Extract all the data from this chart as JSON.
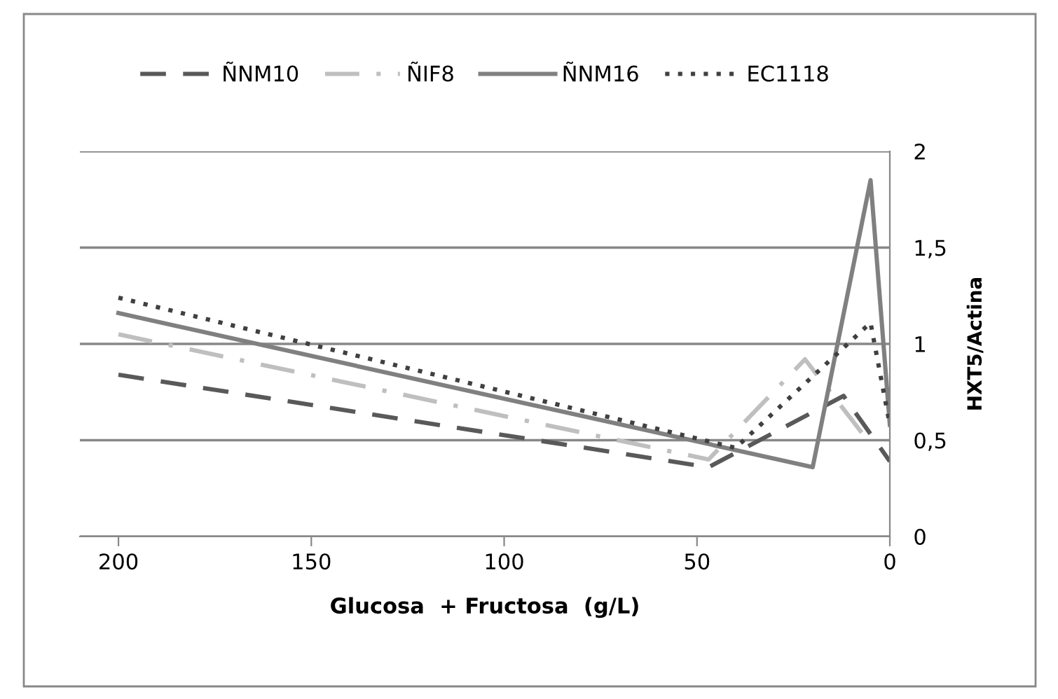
{
  "chart_data": {
    "type": "line",
    "xlabel": "Glucosa  + Fructosa  (g/L)",
    "ylabel": "HXT5/Actina",
    "xlim": [
      210,
      0
    ],
    "xticks": [
      200,
      150,
      100,
      50,
      0
    ],
    "ylim": [
      0,
      2
    ],
    "yticks": [
      0,
      {
        "value": 0.5,
        "label": "0,5"
      },
      1,
      {
        "value": 1.5,
        "label": "1,5"
      },
      2
    ],
    "grid": "y",
    "legend": "top",
    "marker": "none",
    "series": [
      {
        "name": "ÑNM10",
        "color": "#595959",
        "line_style": "dashed",
        "x": [
          200,
          47,
          12,
          0
        ],
        "values": [
          0.84,
          0.36,
          0.73,
          0.39
        ]
      },
      {
        "name": "ÑIF8",
        "color": "#bfbfbf",
        "line_style": "dashdot",
        "x": [
          200,
          47,
          22,
          5
        ],
        "values": [
          1.05,
          0.4,
          0.92,
          0.48
        ]
      },
      {
        "name": "ÑNM16",
        "color": "#808080",
        "line_style": "solid",
        "x": [
          200,
          20,
          5,
          0
        ],
        "values": [
          1.16,
          0.36,
          1.85,
          0.58
        ]
      },
      {
        "name": "EC1118",
        "color": "#404040",
        "line_style": "dotted",
        "x": [
          200,
          40,
          5,
          0
        ],
        "values": [
          1.24,
          0.46,
          1.11,
          0.58
        ]
      }
    ]
  }
}
